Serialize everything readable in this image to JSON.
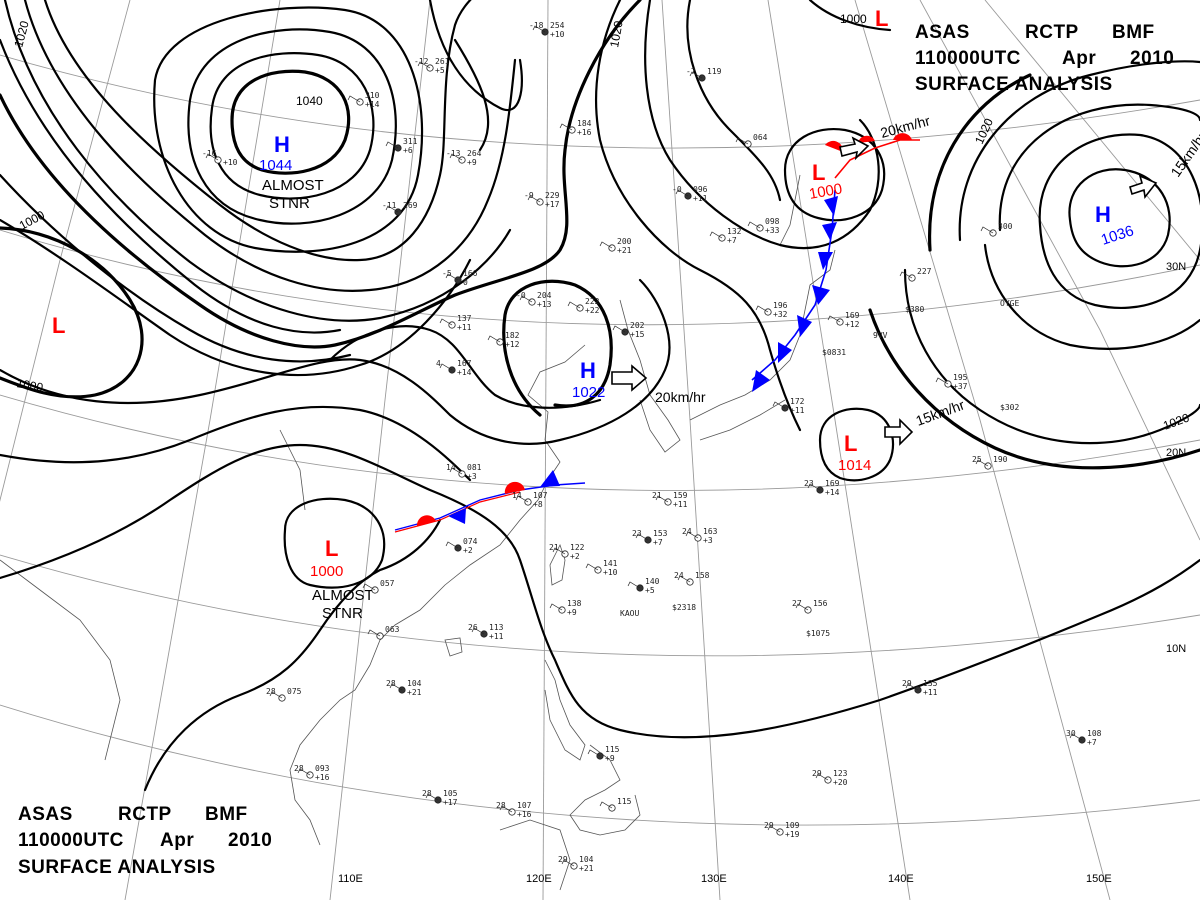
{
  "header": {
    "line1": [
      "ASAS",
      "RCTP",
      "BMF"
    ],
    "line2": [
      "110000UTC",
      "Apr",
      "2010"
    ],
    "line3": "SURFACE  ANALYSIS"
  },
  "grid": {
    "lon_labels": [
      "110E",
      "120E",
      "130E",
      "140E",
      "150E"
    ],
    "lat_labels": [
      "30N",
      "20N",
      "10N"
    ]
  },
  "isobar_labels": [
    "1020",
    "1020",
    "1040",
    "1000",
    "1000",
    "1000",
    "1020",
    "1020"
  ],
  "centers": [
    {
      "type": "H",
      "value": "1044",
      "note": [
        "ALMOST",
        "STNR"
      ]
    },
    {
      "type": "H",
      "value": "1022",
      "speed": "20km/hr"
    },
    {
      "type": "H",
      "value": "1036",
      "speed": "15km/hr"
    },
    {
      "type": "L",
      "value": "1000",
      "note": [
        "ALMOST",
        "STNR"
      ]
    },
    {
      "type": "L",
      "value": "1014",
      "speed": "15km/hr"
    },
    {
      "type": "L",
      "value": "1000",
      "speed": "20km/hr"
    },
    {
      "type": "L",
      "value": ""
    },
    {
      "type": "L",
      "value": ""
    }
  ],
  "stations": [
    {
      "t": "-18",
      "p": "254",
      "d": "+10"
    },
    {
      "t": "-12",
      "p": "261",
      "d": "+5"
    },
    {
      "t": "",
      "p": "310",
      "d": "+14"
    },
    {
      "t": "",
      "p": "311",
      "d": "+6"
    },
    {
      "t": "-13",
      "p": "264",
      "d": "+9"
    },
    {
      "t": "-16",
      "p": "",
      "d": "+10"
    },
    {
      "t": "-11",
      "p": "269",
      "d": ""
    },
    {
      "t": "-9",
      "p": "229",
      "d": "+17"
    },
    {
      "t": "",
      "p": "184",
      "d": "+16"
    },
    {
      "t": "-7",
      "p": "119",
      "d": ""
    },
    {
      "t": "",
      "p": "064",
      "d": ""
    },
    {
      "t": "",
      "p": "200",
      "d": "+21"
    },
    {
      "t": "-0",
      "p": "096",
      "d": "+11"
    },
    {
      "t": "",
      "p": "098",
      "d": "+33"
    },
    {
      "t": "",
      "p": "132",
      "d": "+7"
    },
    {
      "t": "-5",
      "p": "166",
      "d": "0"
    },
    {
      "t": "-0",
      "p": "204",
      "d": "+13"
    },
    {
      "t": "",
      "p": "222",
      "d": "+22"
    },
    {
      "t": "",
      "p": "202",
      "d": "+15"
    },
    {
      "t": "",
      "p": "182",
      "d": "+12"
    },
    {
      "t": "",
      "p": "137",
      "d": "+11"
    },
    {
      "t": "4",
      "p": "167",
      "d": "+14"
    },
    {
      "t": "",
      "p": "196",
      "d": "+32"
    },
    {
      "t": "",
      "p": "169",
      "d": "+12"
    },
    {
      "t": "",
      "p": "172",
      "d": "+11"
    },
    {
      "t": "14",
      "p": "081",
      "d": "+3"
    },
    {
      "t": "14",
      "p": "107",
      "d": "+8"
    },
    {
      "t": "",
      "p": "074",
      "d": "+2"
    },
    {
      "t": "21",
      "p": "122",
      "d": "+2"
    },
    {
      "t": "",
      "p": "141",
      "d": "+10"
    },
    {
      "t": "23",
      "p": "153",
      "d": "+7"
    },
    {
      "t": "24",
      "p": "163",
      "d": "+3"
    },
    {
      "t": "21",
      "p": "159",
      "d": "+11"
    },
    {
      "t": "",
      "p": "140",
      "d": "+5"
    },
    {
      "t": "24",
      "p": "158",
      "d": ""
    },
    {
      "t": "",
      "p": "138",
      "d": "+9"
    },
    {
      "t": "26",
      "p": "113",
      "d": "+11"
    },
    {
      "t": "",
      "p": "057",
      "d": ""
    },
    {
      "t": "",
      "p": "063",
      "d": ""
    },
    {
      "t": "28",
      "p": "104",
      "d": "+21"
    },
    {
      "t": "28",
      "p": "075",
      "d": ""
    },
    {
      "t": "28",
      "p": "093",
      "d": "+16"
    },
    {
      "t": "28",
      "p": "105",
      "d": "+17"
    },
    {
      "t": "28",
      "p": "107",
      "d": "+16"
    },
    {
      "t": "29",
      "p": "104",
      "d": "+21"
    },
    {
      "t": "",
      "p": "115",
      "d": "+9"
    },
    {
      "t": "",
      "p": "115",
      "d": ""
    },
    {
      "t": "27",
      "p": "156",
      "d": ""
    },
    {
      "t": "29",
      "p": "135",
      "d": "+11"
    },
    {
      "t": "29",
      "p": "123",
      "d": "+20"
    },
    {
      "t": "29",
      "p": "109",
      "d": "+19"
    },
    {
      "t": "30",
      "p": "108",
      "d": "+7"
    },
    {
      "t": "25",
      "p": "190",
      "d": ""
    },
    {
      "t": "",
      "p": "195",
      "d": "+37"
    },
    {
      "t": "23",
      "p": "169",
      "d": "+14"
    },
    {
      "t": "",
      "p": "300",
      "d": ""
    },
    {
      "t": "",
      "p": "227",
      "d": ""
    }
  ],
  "station_codes": [
    "KAOU",
    "$2318",
    "$1075",
    "$302",
    "$380",
    "$0831",
    "9VV",
    "OYGE"
  ]
}
